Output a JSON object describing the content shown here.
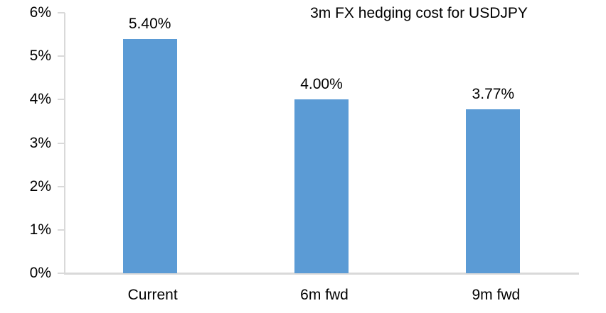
{
  "chart_data": {
    "type": "bar",
    "title": "3m FX hedging cost for USDJPY",
    "categories": [
      "Current",
      "6m fwd",
      "9m fwd"
    ],
    "values": [
      5.4,
      4.0,
      3.77
    ],
    "data_labels": [
      "5.40%",
      "4.00%",
      "3.77%"
    ],
    "y_tick_labels": [
      "0%",
      "1%",
      "2%",
      "3%",
      "4%",
      "5%",
      "6%"
    ],
    "ylim": [
      0,
      6
    ],
    "y_tick_step": 1,
    "xlabel": "",
    "ylabel": "",
    "grid": false,
    "legend": false,
    "bar_color": "#5b9bd5",
    "axis_color": "#d9d9d9",
    "text_color": "#000000",
    "background": "#ffffff"
  }
}
